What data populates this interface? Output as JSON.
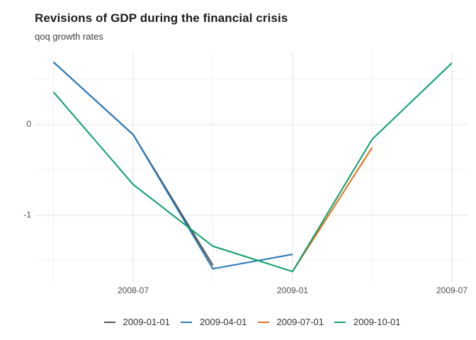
{
  "header": {
    "title": "Revisions of GDP during the financial crisis",
    "subtitle": "qoq growth rates"
  },
  "chart_data": {
    "type": "line",
    "title": "Revisions of GDP during the financial crisis",
    "subtitle": "qoq growth rates",
    "xlabel": "",
    "ylabel": "",
    "categories": [
      "2008-04",
      "2008-07",
      "2008-10",
      "2009-01",
      "2009-04",
      "2009-07"
    ],
    "series": [
      {
        "name": "2009-01-01",
        "color": "#555555",
        "values": [
          0.69,
          -0.11,
          -1.55,
          null,
          null,
          null
        ]
      },
      {
        "name": "2009-04-01",
        "color": "#2a7ab9",
        "values": [
          0.69,
          -0.11,
          -1.59,
          -1.43,
          null,
          null
        ]
      },
      {
        "name": "2009-07-01",
        "color": "#ec6f1d",
        "values": [
          null,
          null,
          null,
          -1.62,
          -0.25,
          null
        ]
      },
      {
        "name": "2009-10-01",
        "color": "#12a26c",
        "values": [
          0.36,
          -0.66,
          -1.34,
          -1.62,
          -0.16,
          0.68
        ]
      }
    ],
    "x_tick_labels": [
      {
        "category_index": 1,
        "label": "2008-07"
      },
      {
        "category_index": 3,
        "label": "2009-01"
      },
      {
        "category_index": 5,
        "label": "2009-07"
      }
    ],
    "y_tick_labels": [
      {
        "value": 0,
        "label": "0"
      },
      {
        "value": -1,
        "label": "-1"
      }
    ],
    "y_minor_gridlines": [
      0.5,
      -0.5,
      -1.5
    ],
    "x_minor_gridline_indices": [
      0,
      2,
      4
    ],
    "ylim": [
      -1.73,
      0.8
    ],
    "grid": "major+minor",
    "legend_position": "bottom",
    "grid_major_color": "#e3e3e3",
    "grid_minor_color": "#f0f0f0"
  },
  "legend": {
    "items": [
      {
        "label": "2009-01-01",
        "color": "#555555"
      },
      {
        "label": "2009-04-01",
        "color": "#2a7ab9"
      },
      {
        "label": "2009-07-01",
        "color": "#ec6f1d"
      },
      {
        "label": "2009-10-01",
        "color": "#12a26c"
      }
    ]
  }
}
